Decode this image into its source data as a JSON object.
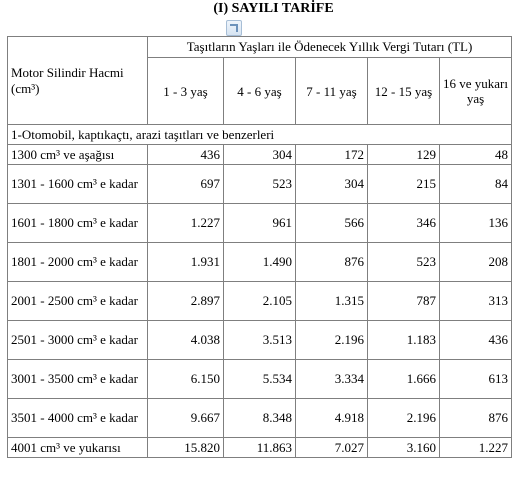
{
  "title": "(I) SAYILI TARİFE",
  "header": {
    "motor_label": "Motor Silindir Hacmi (cm³)",
    "group_label": "Taşıtların Yaşları ile Ödenecek Yıllık Vergi Tutarı (TL)",
    "ages": [
      "1 - 3 yaş",
      "4 - 6 yaş",
      "7 - 11 yaş",
      "12 - 15 yaş",
      "16 ve yukarı yaş"
    ]
  },
  "section_title": "1-Otomobil, kaptıkaçtı, arazi taşıtları ve benzerleri",
  "rows": [
    {
      "label": "1300 cm³ ve aşağısı",
      "values": [
        "436",
        "304",
        "172",
        "129",
        "48"
      ]
    },
    {
      "label": "1301 - 1600 cm³ e kadar",
      "values": [
        "697",
        "523",
        "304",
        "215",
        "84"
      ]
    },
    {
      "label": "1601 - 1800 cm³ e kadar",
      "values": [
        "1.227",
        "961",
        "566",
        "346",
        "136"
      ]
    },
    {
      "label": "1801 - 2000 cm³ e kadar",
      "values": [
        "1.931",
        "1.490",
        "876",
        "523",
        "208"
      ]
    },
    {
      "label": "2001 - 2500 cm³ e kadar",
      "values": [
        "2.897",
        "2.105",
        "1.315",
        "787",
        "313"
      ]
    },
    {
      "label": "2501 - 3000 cm³ e kadar",
      "values": [
        "4.038",
        "3.513",
        "2.196",
        "1.183",
        "436"
      ]
    },
    {
      "label": "3001 - 3500 cm³ e kadar",
      "values": [
        "6.150",
        "5.534",
        "3.334",
        "1.666",
        "613"
      ]
    },
    {
      "label": "3501 - 4000 cm³ e kadar",
      "values": [
        "9.667",
        "8.348",
        "4.918",
        "2.196",
        "876"
      ]
    },
    {
      "label": "4001 cm³ ve yukarısı",
      "values": [
        "15.820",
        "11.863",
        "7.027",
        "3.160",
        "1.227"
      ]
    }
  ]
}
